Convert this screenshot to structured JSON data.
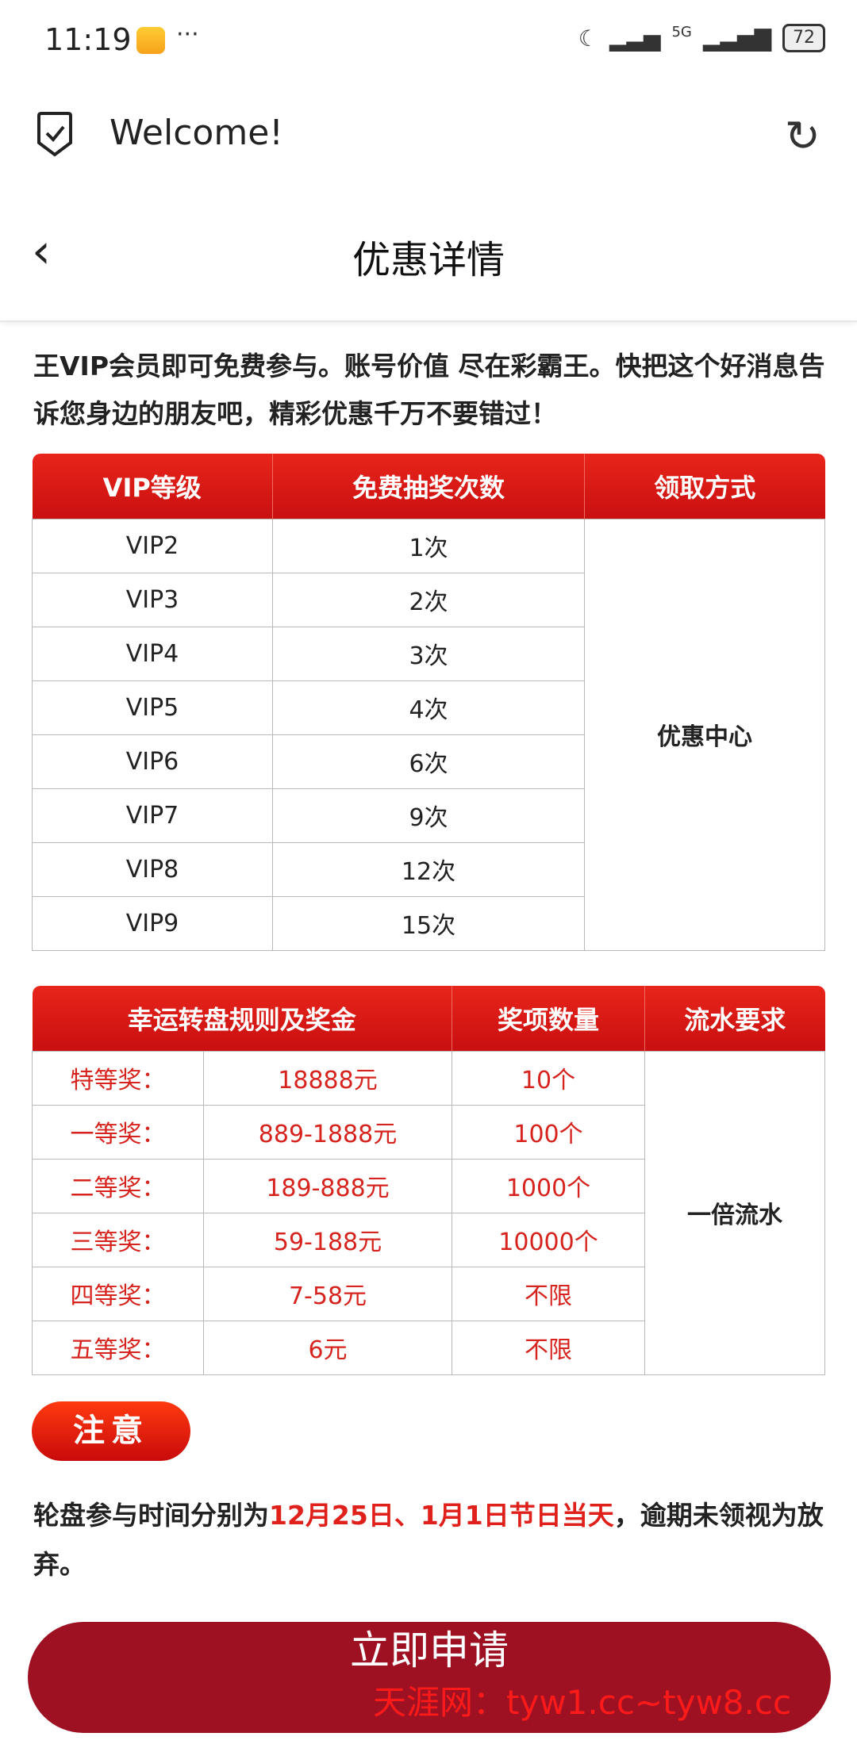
{
  "status_bar": {
    "time": "11:19",
    "network": "5G",
    "battery": "72"
  },
  "browser": {
    "title": "Welcome!"
  },
  "header": {
    "title": "优惠详情"
  },
  "intro": "王VIP会员即可免费参与。账号价值 尽在彩霸王。快把这个好消息告诉您身边的朋友吧，精彩优惠千万不要错过！",
  "vip_table": {
    "headers": [
      "VIP等级",
      "免费抽奖次数",
      "领取方式"
    ],
    "rows": [
      [
        "VIP2",
        "1次"
      ],
      [
        "VIP3",
        "2次"
      ],
      [
        "VIP4",
        "3次"
      ],
      [
        "VIP5",
        "4次"
      ],
      [
        "VIP6",
        "6次"
      ],
      [
        "VIP7",
        "9次"
      ],
      [
        "VIP8",
        "12次"
      ],
      [
        "VIP9",
        "15次"
      ]
    ],
    "method": "优惠中心"
  },
  "prize_table": {
    "headers": [
      "幸运转盘规则及奖金",
      "奖项数量",
      "流水要求"
    ],
    "rows": [
      [
        "特等奖：",
        "18888元",
        "10个"
      ],
      [
        "一等奖：",
        "889-1888元",
        "100个"
      ],
      [
        "二等奖：",
        "189-888元",
        "1000个"
      ],
      [
        "三等奖：",
        "59-188元",
        "10000个"
      ],
      [
        "四等奖：",
        "7-58元",
        "不限"
      ],
      [
        "五等奖：",
        "6元",
        "不限"
      ]
    ],
    "requirement": "一倍流水"
  },
  "notice": {
    "label": "注意",
    "text_before": "轮盘参与时间分别为",
    "text_highlight": "12月25日、1月1日节日当天",
    "text_after": "，逾期未领视为放弃。",
    "highlight_color": "#e0201b"
  },
  "apply_button": "立即申请",
  "watermark": "天涯网：tyw1.cc~tyw8.cc"
}
